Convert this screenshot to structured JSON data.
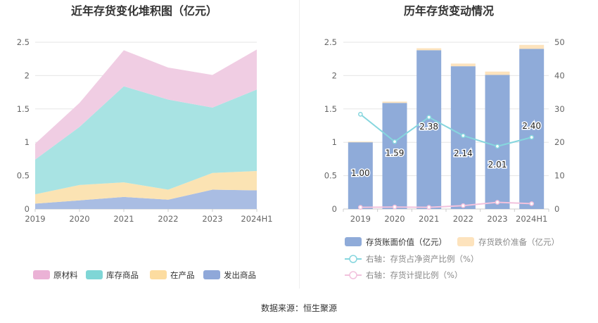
{
  "chart_data": [
    {
      "type": "area",
      "stacked": true,
      "title": "近年存货变化堆积图（亿元）",
      "categories": [
        "2019",
        "2020",
        "2021",
        "2022",
        "2023",
        "2024H1"
      ],
      "ylim": [
        0,
        2.5
      ],
      "yticks": [
        "0",
        "0.5",
        "1",
        "1.5",
        "2",
        "2.5"
      ],
      "grid": true,
      "legend_position": "bottom",
      "series": [
        {
          "name": "发出商品",
          "color": "#a9bde3",
          "legend_color": "#8fa8d9",
          "values": [
            0.08,
            0.13,
            0.18,
            0.14,
            0.29,
            0.28
          ]
        },
        {
          "name": "在产品",
          "color": "#fbe3b3",
          "legend_color": "#fcdca0",
          "values": [
            0.14,
            0.23,
            0.22,
            0.15,
            0.25,
            0.29
          ]
        },
        {
          "name": "库存商品",
          "color": "#a8e3e3",
          "legend_color": "#7fd6d6",
          "values": [
            0.52,
            0.87,
            1.44,
            1.35,
            0.98,
            1.22
          ]
        },
        {
          "name": "原材料",
          "color": "#f0cde3",
          "legend_color": "#ebb2d6",
          "values": [
            0.24,
            0.36,
            0.54,
            0.48,
            0.49,
            0.6
          ]
        }
      ],
      "legend_order": [
        "原材料",
        "库存商品",
        "在产品",
        "发出商品"
      ]
    },
    {
      "type": "bar",
      "title": "历年存货变动情况",
      "categories": [
        "2019",
        "2020",
        "2021",
        "2022",
        "2023",
        "2024H1"
      ],
      "ylim": [
        0,
        2.5
      ],
      "yticks": [
        "0",
        "0.5",
        "1",
        "1.5",
        "2",
        "2.5"
      ],
      "y2lim": [
        0,
        50
      ],
      "y2ticks": [
        "0",
        "10",
        "20",
        "30",
        "40",
        "50"
      ],
      "grid": true,
      "legend_position": "bottom",
      "series": [
        {
          "name": "存货账面价值（亿元）",
          "kind": "bar",
          "color": "#8fabd9",
          "values": [
            1.0,
            1.59,
            2.38,
            2.14,
            2.01,
            2.4
          ],
          "labels": [
            "1.00",
            "1.59",
            "2.38",
            "2.14",
            "2.01",
            "2.40"
          ]
        },
        {
          "name": "存货跌价准备（亿元）",
          "kind": "bar-stack",
          "color": "#fde3bd",
          "values": [
            0.01,
            0.02,
            0.03,
            0.04,
            0.05,
            0.06
          ]
        },
        {
          "name": "右轴：存货占净资产比例（%）",
          "kind": "line",
          "axis": "right",
          "color": "#86d6de",
          "values": [
            28.4,
            20.2,
            27.5,
            22.0,
            18.8,
            21.5
          ]
        },
        {
          "name": "右轴：存货计提比例（%）",
          "kind": "line",
          "axis": "right",
          "color": "#f2c2dd",
          "values": [
            0.5,
            0.6,
            0.5,
            1.0,
            2.0,
            1.6
          ]
        }
      ]
    }
  ],
  "footer": {
    "source": "数据来源：恒生聚源"
  }
}
